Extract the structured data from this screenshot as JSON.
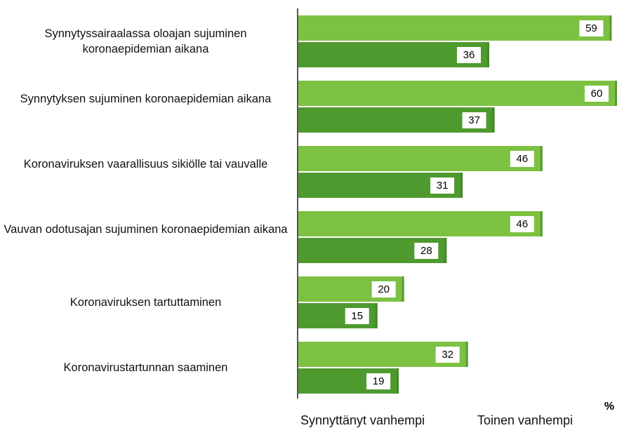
{
  "chart_data": {
    "type": "hbar",
    "categories": [
      "Synnytyssairaalassa oloajan sujuminen koronaepidemian aikana",
      "Synnytyksen sujuminen koronaepidemian aikana",
      "Koronaviruksen vaarallisuus sikiölle tai vauvalle",
      "Vauvan odotusajan sujuminen koronaepidemian aikana",
      "Koronaviruksen tartuttaminen",
      "Koronavirustartunnan saaminen"
    ],
    "series": [
      {
        "name": "Synnyttänyt vanhempi",
        "color": "#7dc142",
        "values": [
          59,
          60,
          46,
          46,
          20,
          32
        ]
      },
      {
        "name": "Toinen vanhempi",
        "color": "#4f9a2f",
        "values": [
          36,
          37,
          31,
          28,
          15,
          19
        ]
      }
    ],
    "xlim": [
      0,
      60
    ],
    "unit_label": "%",
    "legend": "bottom"
  }
}
